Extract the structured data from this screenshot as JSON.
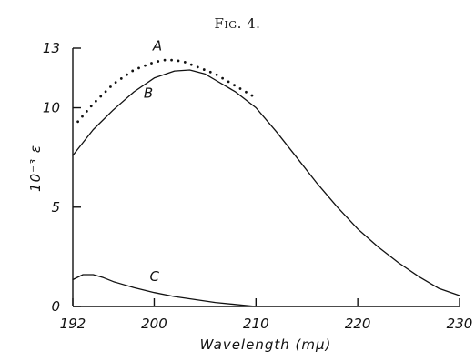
{
  "chart_data": {
    "type": "line",
    "title": "Fig. 4.",
    "xlabel": "Wavelength (mμ)",
    "ylabel": "10⁻³ ε",
    "xlim": [
      192,
      230
    ],
    "ylim": [
      0,
      13
    ],
    "x_ticks": [
      192,
      200,
      210,
      220,
      230
    ],
    "y_ticks": [
      0,
      5,
      10,
      13
    ],
    "x_tick_labels": [
      "192",
      "200",
      "210",
      "220",
      "230"
    ],
    "y_tick_labels": [
      "0",
      "5",
      "10",
      "13"
    ],
    "grid": false,
    "series": [
      {
        "name": "A",
        "style": "dotted",
        "x": [
          192.5,
          194,
          196,
          198,
          200,
          201,
          202,
          203,
          204,
          205,
          206,
          207,
          208,
          209,
          210
        ],
        "y": [
          9.3,
          10.2,
          11.2,
          11.9,
          12.3,
          12.4,
          12.4,
          12.3,
          12.1,
          11.9,
          11.7,
          11.4,
          11.1,
          10.8,
          10.5
        ]
      },
      {
        "name": "B",
        "style": "solid",
        "x": [
          192,
          194,
          196,
          198,
          200,
          202,
          203.5,
          205,
          206,
          208,
          210,
          212,
          214,
          216,
          218,
          220,
          222,
          224,
          226,
          228,
          230
        ],
        "y": [
          7.6,
          8.9,
          9.9,
          10.8,
          11.5,
          11.85,
          11.9,
          11.7,
          11.4,
          10.8,
          10.0,
          8.8,
          7.5,
          6.2,
          5.0,
          3.9,
          3.0,
          2.2,
          1.5,
          0.9,
          0.55
        ]
      },
      {
        "name": "C",
        "style": "solid",
        "x": [
          192,
          193,
          194,
          195,
          196,
          198,
          200,
          202,
          204,
          206,
          208,
          210
        ],
        "y": [
          1.35,
          1.6,
          1.6,
          1.45,
          1.25,
          0.95,
          0.7,
          0.5,
          0.35,
          0.2,
          0.1,
          0.0
        ]
      }
    ]
  }
}
